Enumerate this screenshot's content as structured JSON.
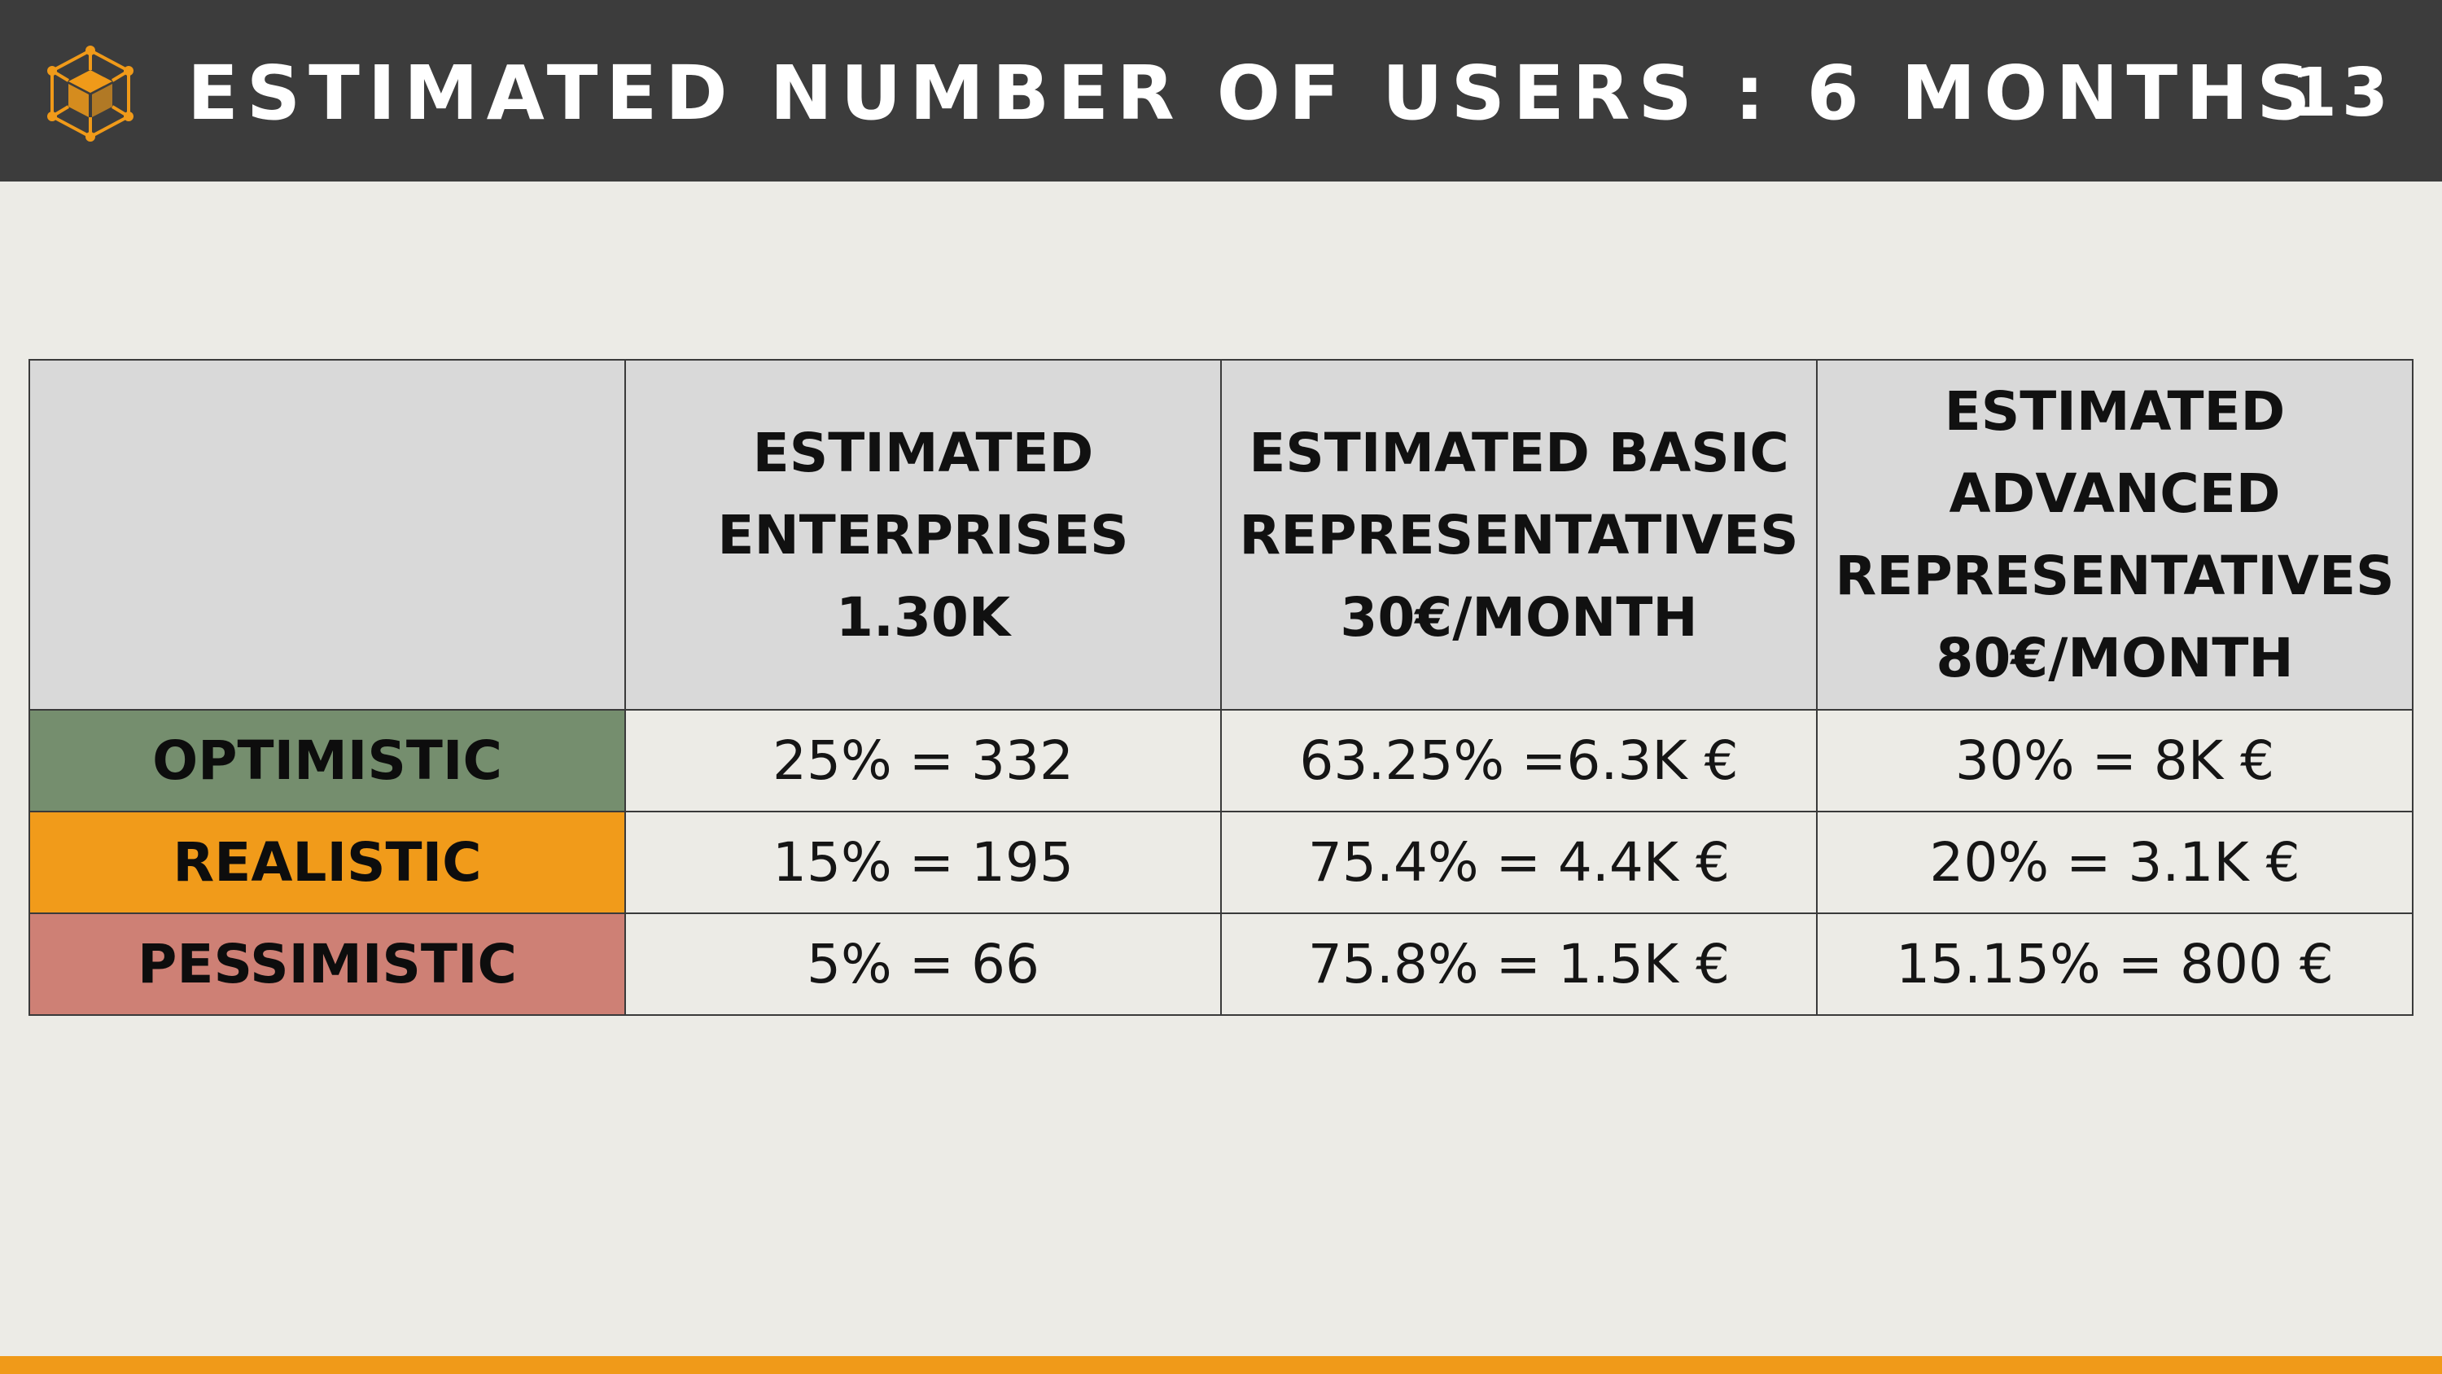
{
  "header": {
    "title": "ESTIMATED NUMBER OF USERS : 6 MONTHS",
    "page_number": "13",
    "logo_icon": "cube-network-icon"
  },
  "colors": {
    "header_bg": "#3C3C3C",
    "accent": "#F09A19",
    "page_bg": "#ECEBE6",
    "table_header_bg": "#D9D9D9",
    "optimistic": "#758E6E",
    "realistic": "#F19B1A",
    "pessimistic": "#CE8075"
  },
  "table": {
    "columns": [
      "",
      "ESTIMATED ENTERPRISES 1.30K",
      "ESTIMATED BASIC REPRESENTATIVES 30€/MONTH",
      "ESTIMATED ADVANCED REPRESENTATIVES 80€/MONTH"
    ],
    "rows": [
      {
        "scenario": "OPTIMISTIC",
        "enterprises": "25% = 332",
        "basic": "63.25% =6.3K €",
        "advanced": "30% = 8K €"
      },
      {
        "scenario": "REALISTIC",
        "enterprises": "15% = 195",
        "basic": "75.4% = 4.4K €",
        "advanced": "20% = 3.1K €"
      },
      {
        "scenario": "PESSIMISTIC",
        "enterprises": "5% = 66",
        "basic": "75.8% = 1.5K €",
        "advanced": "15.15% = 800 €"
      }
    ]
  }
}
